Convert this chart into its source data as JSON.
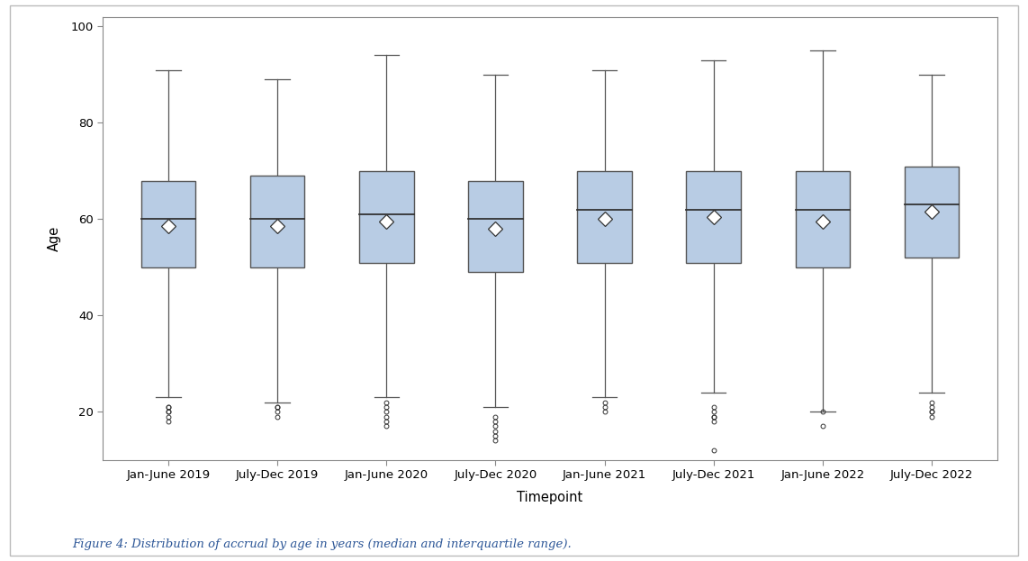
{
  "timepoints": [
    "Jan-June 2019",
    "July-Dec 2019",
    "Jan-June 2020",
    "July-Dec 2020",
    "Jan-June 2021",
    "July-Dec 2021",
    "Jan-June 2022",
    "July-Dec 2022"
  ],
  "boxes": [
    {
      "q1": 50,
      "median": 60,
      "q3": 68,
      "whisker_low": 23,
      "whisker_high": 91,
      "mean": 58.5,
      "fliers_low": [
        21,
        21,
        20,
        20,
        19,
        18
      ],
      "fliers_high": []
    },
    {
      "q1": 50,
      "median": 60,
      "q3": 69,
      "whisker_low": 22,
      "whisker_high": 89,
      "mean": 58.5,
      "fliers_low": [
        21,
        21,
        20,
        19
      ],
      "fliers_high": []
    },
    {
      "q1": 51,
      "median": 61,
      "q3": 70,
      "whisker_low": 23,
      "whisker_high": 94,
      "mean": 59.5,
      "fliers_low": [
        22,
        21,
        20,
        19,
        18,
        17
      ],
      "fliers_high": []
    },
    {
      "q1": 49,
      "median": 60,
      "q3": 68,
      "whisker_low": 21,
      "whisker_high": 90,
      "mean": 58.0,
      "fliers_low": [
        19,
        18,
        17,
        16,
        15,
        14
      ],
      "fliers_high": []
    },
    {
      "q1": 51,
      "median": 62,
      "q3": 70,
      "whisker_low": 23,
      "whisker_high": 91,
      "mean": 60.0,
      "fliers_low": [
        22,
        21,
        20
      ],
      "fliers_high": []
    },
    {
      "q1": 51,
      "median": 62,
      "q3": 70,
      "whisker_low": 24,
      "whisker_high": 93,
      "mean": 60.5,
      "fliers_low": [
        21,
        20,
        19,
        19,
        18,
        12
      ],
      "fliers_high": []
    },
    {
      "q1": 50,
      "median": 62,
      "q3": 70,
      "whisker_low": 20,
      "whisker_high": 95,
      "mean": 59.5,
      "fliers_low": [
        20,
        17
      ],
      "fliers_high": []
    },
    {
      "q1": 52,
      "median": 63,
      "q3": 71,
      "whisker_low": 24,
      "whisker_high": 90,
      "mean": 61.5,
      "fliers_low": [
        22,
        21,
        20,
        20,
        19
      ],
      "fliers_high": []
    }
  ],
  "ylabel": "Age",
  "xlabel": "Timepoint",
  "ylim": [
    10,
    102
  ],
  "yticks": [
    20,
    40,
    60,
    80,
    100
  ],
  "box_facecolor": "#b8cce4",
  "box_edgecolor": "#555555",
  "whisker_color": "#555555",
  "median_color": "#333333",
  "flier_color": "#333333",
  "mean_marker_facecolor": "white",
  "mean_marker_edgecolor": "#333333",
  "background_color": "#ffffff",
  "figure_border_color": "#aaaaaa",
  "axis_spine_color": "#888888",
  "figure_caption": "Figure 4: Distribution of accrual by age in years (median and interquartile range).",
  "caption_color": "#2c5697",
  "box_width": 0.5,
  "cap_ratio": 0.45
}
